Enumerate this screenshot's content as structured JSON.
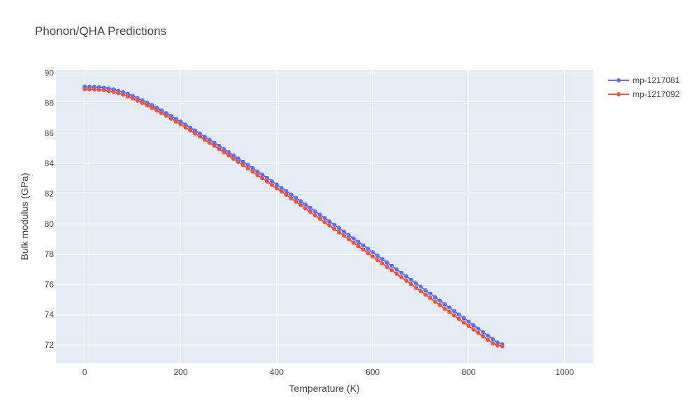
{
  "chart_data": {
    "type": "line",
    "title": "Phonon/QHA Predictions",
    "xlabel": "Temperature (K)",
    "ylabel": "Bulk modulus (GPa)",
    "xlim": [
      -60,
      1060
    ],
    "ylim": [
      70.8,
      90.2
    ],
    "xticks": [
      0,
      200,
      400,
      600,
      800,
      1000
    ],
    "yticks": [
      72,
      74,
      76,
      78,
      80,
      82,
      84,
      86,
      88,
      90
    ],
    "grid": true,
    "legend_position": "top-right",
    "x_start": 0,
    "x_step": 10,
    "series": [
      {
        "name": "mp-1217081",
        "color": "#636efa",
        "values": [
          89.08,
          89.08,
          89.07,
          89.05,
          89.02,
          88.97,
          88.9,
          88.82,
          88.72,
          88.6,
          88.47,
          88.33,
          88.18,
          88.02,
          87.86,
          87.69,
          87.51,
          87.33,
          87.15,
          86.96,
          86.77,
          86.58,
          86.38,
          86.18,
          85.98,
          85.78,
          85.58,
          85.37,
          85.17,
          84.96,
          84.75,
          84.54,
          84.33,
          84.12,
          83.91,
          83.69,
          83.48,
          83.26,
          83.05,
          82.83,
          82.61,
          82.39,
          82.17,
          81.95,
          81.73,
          81.51,
          81.29,
          81.07,
          80.84,
          80.62,
          80.4,
          80.17,
          79.95,
          79.72,
          79.5,
          79.27,
          79.05,
          78.82,
          78.59,
          78.37,
          78.14,
          77.91,
          77.68,
          77.45,
          77.23,
          77.0,
          76.77,
          76.54,
          76.31,
          76.08,
          75.85,
          75.62,
          75.39,
          75.16,
          74.93,
          74.7,
          74.47,
          74.24,
          74.01,
          73.78,
          73.55,
          73.31,
          73.08,
          72.85,
          72.62,
          72.39,
          72.16,
          72.05
        ]
      },
      {
        "name": "mp-1217092",
        "color": "#ef553b",
        "values": [
          88.92,
          88.92,
          88.91,
          88.89,
          88.86,
          88.81,
          88.74,
          88.66,
          88.56,
          88.44,
          88.31,
          88.17,
          88.02,
          87.86,
          87.69,
          87.52,
          87.34,
          87.16,
          86.97,
          86.78,
          86.59,
          86.39,
          86.19,
          85.99,
          85.79,
          85.58,
          85.38,
          85.17,
          84.96,
          84.75,
          84.54,
          84.33,
          84.11,
          83.9,
          83.68,
          83.47,
          83.25,
          83.03,
          82.81,
          82.59,
          82.37,
          82.15,
          81.93,
          81.7,
          81.48,
          81.26,
          81.03,
          80.81,
          80.58,
          80.36,
          80.13,
          79.91,
          79.68,
          79.45,
          79.23,
          79.0,
          78.77,
          78.54,
          78.31,
          78.09,
          77.86,
          77.63,
          77.4,
          77.17,
          76.94,
          76.71,
          76.48,
          76.25,
          76.02,
          75.79,
          75.56,
          75.33,
          75.1,
          74.87,
          74.64,
          74.41,
          74.18,
          73.95,
          73.72,
          73.49,
          73.26,
          73.03,
          72.8,
          72.57,
          72.34,
          72.11,
          71.98,
          71.92
        ]
      }
    ]
  }
}
